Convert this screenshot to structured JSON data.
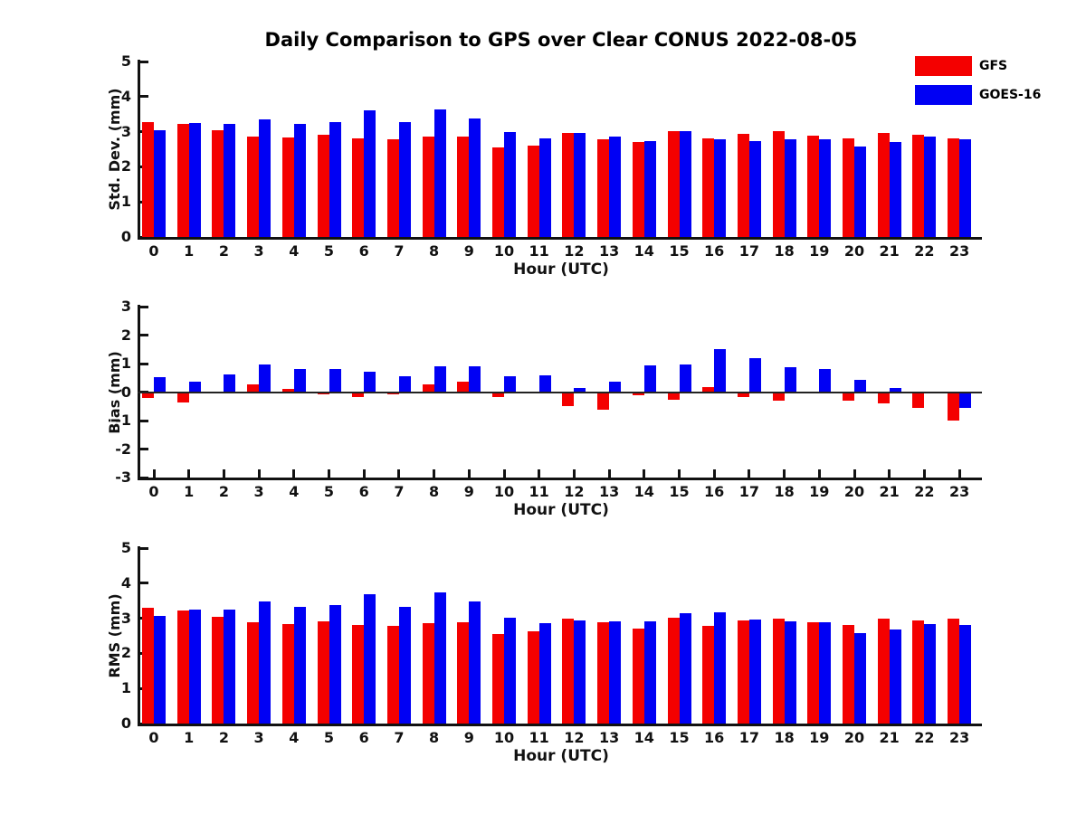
{
  "title": "Daily Comparison to GPS over Clear CONUS 2022-08-05",
  "legend": {
    "gfs": "GFS",
    "goes16": "GOES-16"
  },
  "colors": {
    "gfs": "#f40000",
    "goes16": "#0000f4",
    "axis": "#111111",
    "zero_line": "#222222"
  },
  "xlabel": "Hour (UTC)",
  "chart_data": {
    "type": "bar",
    "categories": [
      0,
      1,
      2,
      3,
      4,
      5,
      6,
      7,
      8,
      9,
      10,
      11,
      12,
      13,
      14,
      15,
      16,
      17,
      18,
      19,
      20,
      21,
      22,
      23
    ],
    "grid": false,
    "legend_position": "top-right",
    "panels": [
      {
        "name": "std_dev",
        "ylabel": "Std. Dev. (mm)",
        "ylim": [
          0,
          5
        ],
        "yticks": [
          5,
          4,
          3,
          2,
          1,
          0
        ],
        "zero_line": false,
        "series": [
          {
            "name": "GFS",
            "values": [
              3.27,
              3.21,
              3.05,
              2.87,
              2.84,
              2.91,
              2.81,
              2.78,
              2.87,
              2.87,
              2.54,
              2.61,
              2.96,
              2.78,
              2.7,
              3.01,
              2.81,
              2.94,
              3.01,
              2.89,
              2.82,
              2.97,
              2.91,
              2.8
            ]
          },
          {
            "name": "GOES-16",
            "values": [
              3.04,
              3.26,
              3.21,
              3.36,
              3.23,
              3.28,
              3.61,
              3.27,
              3.64,
              3.38,
              2.99,
              2.82,
              2.96,
              2.87,
              2.73,
              3.02,
              2.78,
              2.73,
              2.78,
              2.79,
              2.57,
              2.7,
              2.86,
              2.78
            ]
          }
        ]
      },
      {
        "name": "bias",
        "ylabel": "Bias (mm)",
        "ylim": [
          -3,
          3
        ],
        "yticks": [
          3,
          2,
          1,
          0,
          -1,
          -2,
          -3
        ],
        "zero_line": true,
        "series": [
          {
            "name": "GFS",
            "values": [
              -0.2,
              -0.36,
              0.02,
              0.26,
              0.1,
              -0.07,
              -0.18,
              -0.09,
              0.27,
              0.36,
              -0.17,
              0.02,
              -0.48,
              -0.63,
              -0.12,
              -0.26,
              0.16,
              -0.17,
              -0.3,
              0.0,
              -0.29,
              -0.41,
              -0.54,
              -0.99
            ]
          },
          {
            "name": "GOES-16",
            "values": [
              0.51,
              0.36,
              0.61,
              0.96,
              0.82,
              0.8,
              0.71,
              0.56,
              0.92,
              0.89,
              0.54,
              0.6,
              0.15,
              0.36,
              0.95,
              0.96,
              1.5,
              1.2,
              0.87,
              0.81,
              0.42,
              0.15,
              -0.03,
              -0.56
            ]
          }
        ]
      },
      {
        "name": "rms",
        "ylabel": "RMS (mm)",
        "ylim": [
          0,
          5
        ],
        "yticks": [
          5,
          4,
          3,
          2,
          1,
          0
        ],
        "zero_line": false,
        "series": [
          {
            "name": "GFS",
            "values": [
              3.29,
              3.21,
              3.03,
              2.88,
              2.84,
              2.91,
              2.8,
              2.78,
              2.86,
              2.88,
              2.55,
              2.62,
              2.98,
              2.88,
              2.71,
              3.02,
              2.79,
              2.94,
              2.99,
              2.89,
              2.82,
              2.99,
              2.93,
              2.99
            ]
          },
          {
            "name": "GOES-16",
            "values": [
              3.07,
              3.26,
              3.25,
              3.48,
              3.32,
              3.37,
              3.68,
              3.32,
              3.75,
              3.49,
              3.02,
              2.86,
              2.95,
              2.9,
              2.9,
              3.14,
              3.17,
              2.97,
              2.91,
              2.88,
              2.58,
              2.68,
              2.83,
              2.81
            ]
          }
        ]
      }
    ]
  }
}
